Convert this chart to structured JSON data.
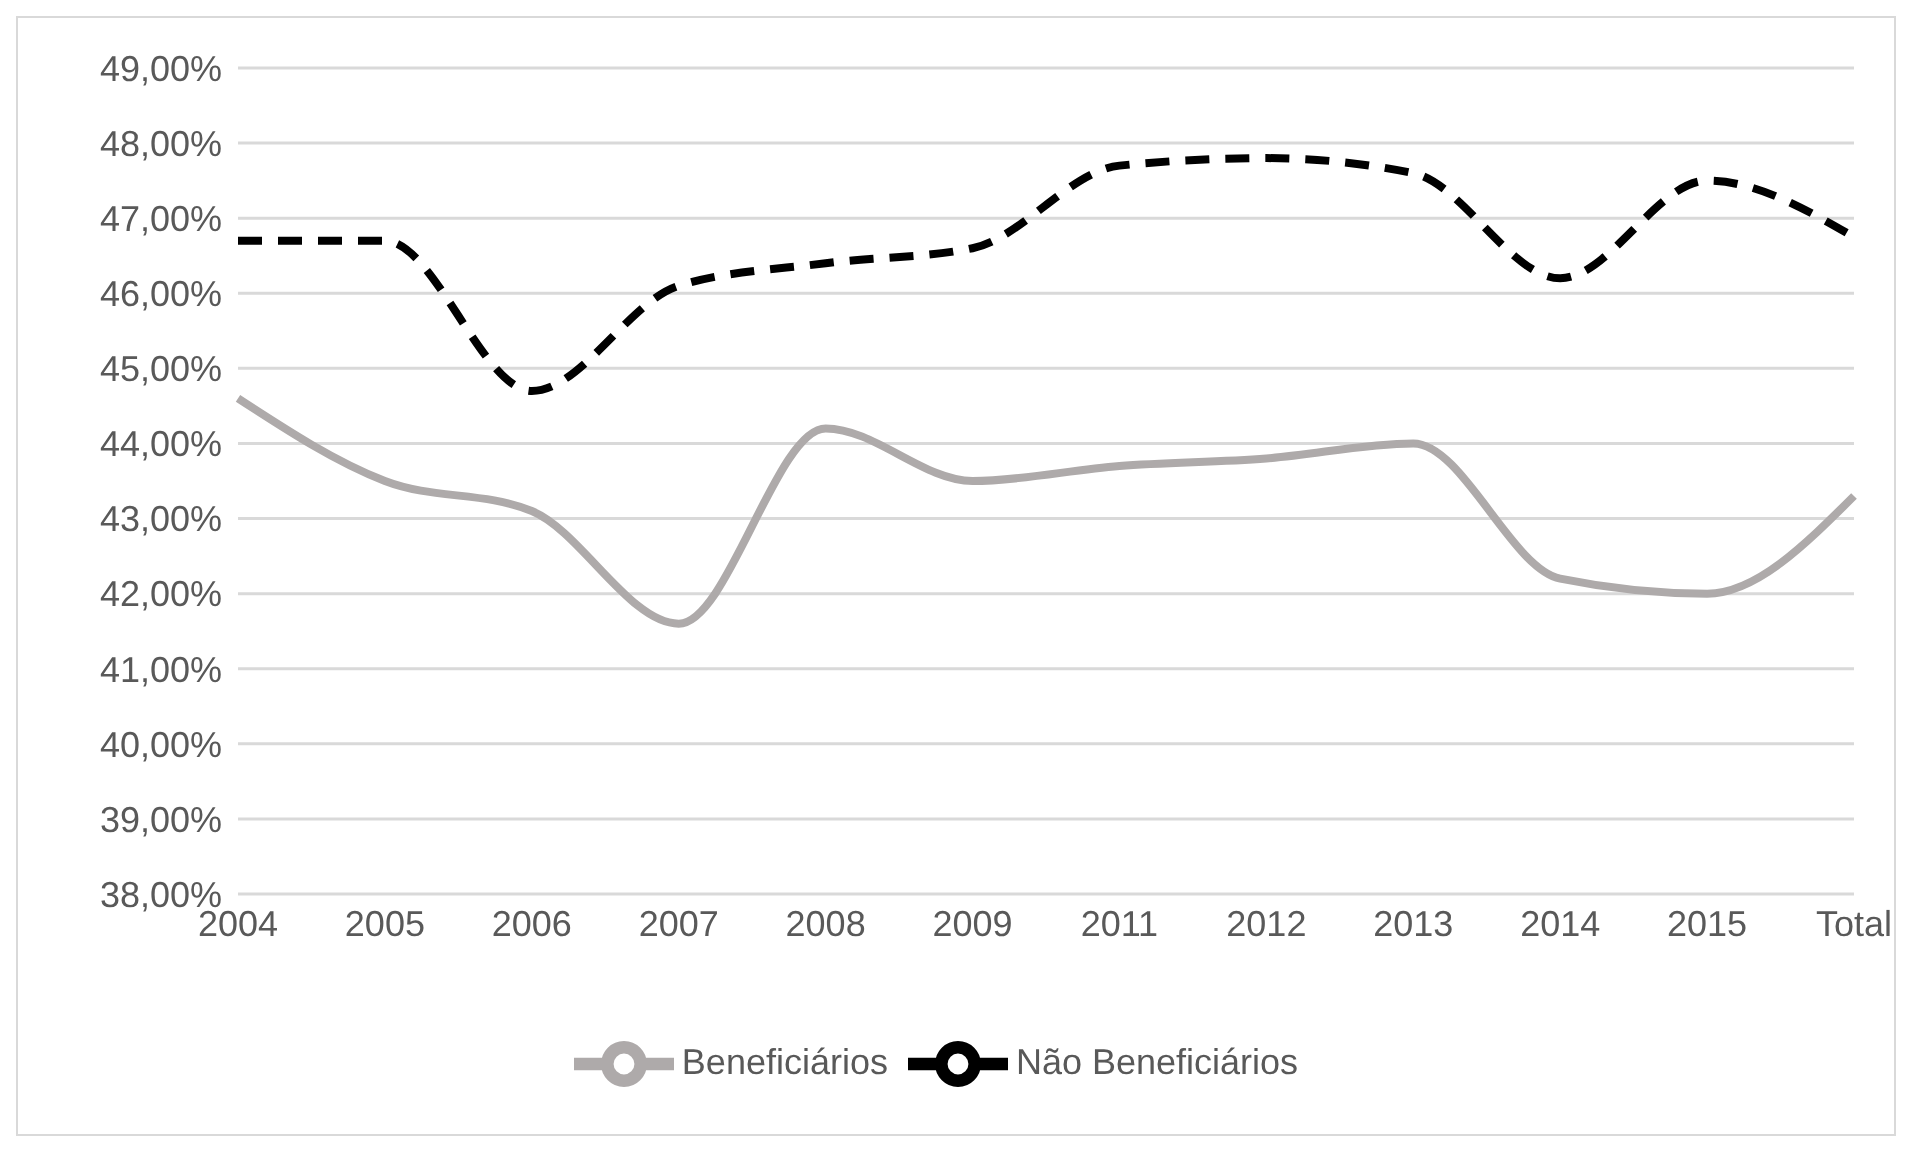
{
  "chart_data": {
    "type": "line",
    "categories": [
      "2004",
      "2005",
      "2006",
      "2007",
      "2008",
      "2009",
      "2011",
      "2012",
      "2013",
      "2014",
      "2015",
      "Total"
    ],
    "series": [
      {
        "name": "Não Beneficiários",
        "color": "#000000",
        "line_style": "dashed",
        "values": [
          46.7,
          46.7,
          44.7,
          46.1,
          46.4,
          46.6,
          47.7,
          47.8,
          47.6,
          46.2,
          47.5,
          46.75
        ]
      },
      {
        "name": "Beneficiários",
        "color": "#aeaaaa",
        "line_style": "solid",
        "values": [
          44.6,
          43.5,
          43.1,
          41.6,
          44.2,
          43.5,
          43.7,
          43.8,
          44.0,
          42.2,
          42.0,
          43.3
        ]
      }
    ],
    "ylim": [
      38,
      49
    ],
    "yticks": [
      {
        "value": 38,
        "label": "38,00%"
      },
      {
        "value": 39,
        "label": "39,00%"
      },
      {
        "value": 40,
        "label": "40,00%"
      },
      {
        "value": 41,
        "label": "41,00%"
      },
      {
        "value": 42,
        "label": "42,00%"
      },
      {
        "value": 43,
        "label": "43,00%"
      },
      {
        "value": 44,
        "label": "44,00%"
      },
      {
        "value": 45,
        "label": "45,00%"
      },
      {
        "value": 46,
        "label": "46,00%"
      },
      {
        "value": 47,
        "label": "47,00%"
      },
      {
        "value": 48,
        "label": "48,00%"
      },
      {
        "value": 49,
        "label": "49,00%"
      }
    ],
    "grid": "y",
    "legend": "bottom",
    "marker": "none"
  }
}
